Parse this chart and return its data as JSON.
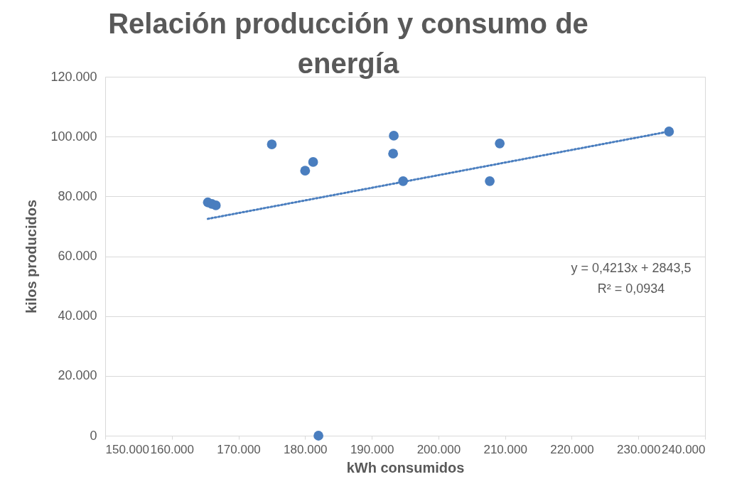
{
  "chart_data": {
    "type": "scatter",
    "title": "Relación producción y consumo de energía",
    "xlabel": "kWh consumidos",
    "ylabel": "kilos producidos",
    "xlim": [
      150000,
      240000
    ],
    "ylim": [
      0,
      120000
    ],
    "xticks": [
      {
        "value": 150000,
        "label": "150.000"
      },
      {
        "value": 160000,
        "label": "160.000"
      },
      {
        "value": 170000,
        "label": "170.000"
      },
      {
        "value": 180000,
        "label": "180.000"
      },
      {
        "value": 190000,
        "label": "190.000"
      },
      {
        "value": 200000,
        "label": "200.000"
      },
      {
        "value": 210000,
        "label": "210.000"
      },
      {
        "value": 220000,
        "label": "220.000"
      },
      {
        "value": 230000,
        "label": "230.000"
      },
      {
        "value": 240000,
        "label": "240.000"
      }
    ],
    "yticks": [
      0,
      {
        "value": 20000,
        "label": "20.000"
      },
      {
        "value": 40000,
        "label": "40.000"
      },
      {
        "value": 60000,
        "label": "60.000"
      },
      {
        "value": 80000,
        "label": "80.000"
      },
      {
        "value": 100000,
        "label": "100.000"
      },
      {
        "value": 120000,
        "label": "120.000"
      }
    ],
    "grid": "y",
    "series": [
      {
        "marker": "circle",
        "color": "#4a7ebf",
        "x": [
          165400,
          166000,
          166600,
          175000,
          180000,
          181200,
          182000,
          193300,
          193200,
          194700,
          207700,
          209200,
          234600
        ],
        "values": [
          78000,
          77500,
          77000,
          97400,
          88600,
          91500,
          0,
          100300,
          94300,
          85100,
          85100,
          97700,
          101700
        ]
      },
      {
        "type": "line",
        "color": "#4a7ebf",
        "line_style": "dotted",
        "x": [
          165400,
          234600
        ],
        "values": [
          72500,
          101700
        ]
      }
    ],
    "annotations": [
      "y = 0,4213x + 2843,5",
      "R² = 0,0934"
    ]
  }
}
